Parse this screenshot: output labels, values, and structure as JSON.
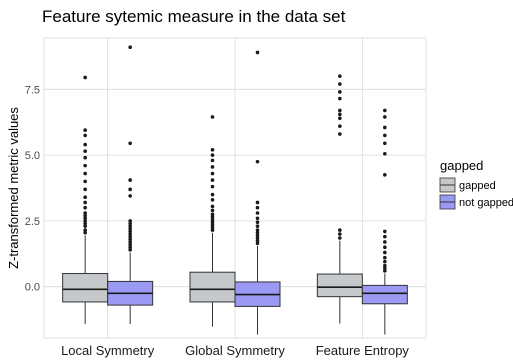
{
  "chart_data": {
    "type": "box",
    "title": "Feature sytemic measure in the data set",
    "xlabel": "",
    "ylabel": "Z-transformed metric values",
    "categories": [
      "Local Symmetry",
      "Global Symmetry",
      "Feature Entropy"
    ],
    "y_ticks": [
      0.0,
      2.5,
      5.0,
      7.5
    ],
    "y_tick_labels": [
      "0.0",
      "2.5",
      "5.0",
      "7.5"
    ],
    "ylim": [
      -1.95,
      9.45
    ],
    "grid": true,
    "legend": {
      "title": "gapped",
      "placement": "right",
      "entries": [
        "gapped",
        "not gapped"
      ]
    },
    "colors": {
      "gapped": "#c6c9cc",
      "not gapped": "#9a9af5",
      "grid": "#d9d9d9",
      "outline": "#333333"
    },
    "series": [
      {
        "name": "gapped",
        "boxes": [
          {
            "min": -1.42,
            "q1": -0.58,
            "median": -0.1,
            "q3": 0.5,
            "max": 1.95,
            "outliers": [
              2.05,
              2.15,
              2.3,
              2.4,
              2.5,
              2.6,
              2.7,
              2.8,
              3.0,
              3.2,
              3.4,
              3.7,
              4.0,
              4.3,
              4.6,
              4.9,
              5.15,
              5.4,
              5.75,
              5.95,
              7.95
            ]
          },
          {
            "min": -1.52,
            "q1": -0.58,
            "median": -0.1,
            "q3": 0.55,
            "max": 2.05,
            "outliers": [
              2.15,
              2.25,
              2.35,
              2.45,
              2.55,
              2.65,
              2.75,
              2.9,
              3.05,
              3.3,
              3.5,
              3.8,
              4.05,
              4.3,
              4.55,
              4.8,
              5.0,
              5.2,
              6.45
            ]
          },
          {
            "min": -1.4,
            "q1": -0.38,
            "median": -0.02,
            "q3": 0.48,
            "max": 1.75,
            "outliers": [
              1.85,
              2.0,
              2.15,
              5.8,
              6.1,
              6.4,
              6.55,
              6.7,
              7.15,
              7.4,
              7.7,
              8.0
            ]
          }
        ]
      },
      {
        "name": "not gapped",
        "boxes": [
          {
            "min": -1.42,
            "q1": -0.7,
            "median": -0.25,
            "q3": 0.2,
            "max": 1.3,
            "outliers": [
              1.4,
              1.5,
              1.6,
              1.7,
              1.8,
              1.9,
              2.0,
              2.1,
              2.2,
              2.3,
              2.4,
              2.5,
              3.45,
              3.7,
              4.05,
              5.45,
              9.1
            ]
          },
          {
            "min": -1.82,
            "q1": -0.75,
            "median": -0.3,
            "q3": 0.18,
            "max": 1.55,
            "outliers": [
              1.65,
              1.75,
              1.85,
              1.95,
              2.05,
              2.15,
              2.3,
              2.45,
              2.6,
              2.8,
              3.0,
              3.2,
              4.75,
              8.9
            ]
          },
          {
            "min": -1.82,
            "q1": -0.65,
            "median": -0.25,
            "q3": 0.05,
            "max": 0.5,
            "outliers": [
              0.6,
              0.7,
              0.8,
              0.95,
              1.1,
              1.3,
              1.5,
              1.7,
              1.9,
              2.1,
              4.25,
              5.05,
              5.45,
              5.75,
              6.05,
              6.45,
              6.7
            ]
          }
        ]
      }
    ]
  }
}
